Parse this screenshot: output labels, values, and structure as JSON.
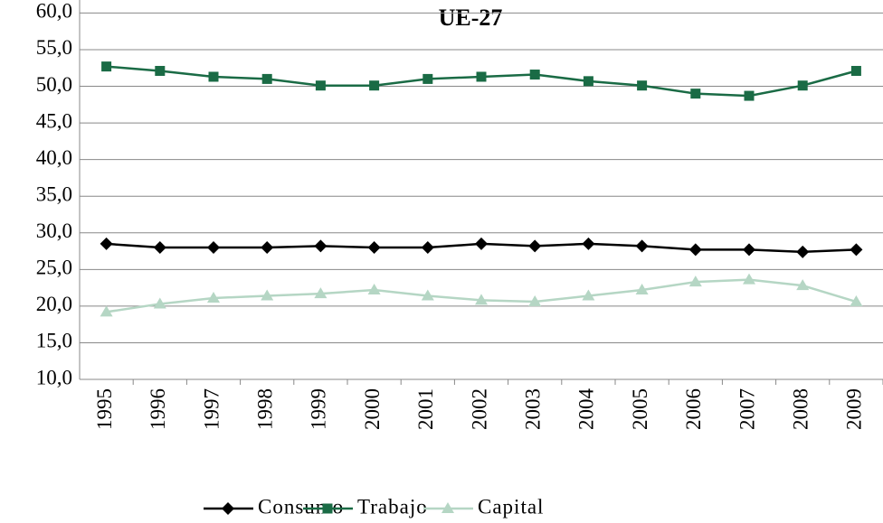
{
  "chart_data": {
    "type": "line",
    "title": "UE-27",
    "categories": [
      "1995",
      "1996",
      "1997",
      "1998",
      "1999",
      "2000",
      "2001",
      "2002",
      "2003",
      "2004",
      "2005",
      "2006",
      "2007",
      "2008",
      "2009"
    ],
    "series": [
      {
        "name": "Consumo",
        "color": "#000000",
        "marker": "diamond",
        "values": [
          28.5,
          28.0,
          28.0,
          28.0,
          28.2,
          28.0,
          28.0,
          28.5,
          28.2,
          28.5,
          28.2,
          27.7,
          27.7,
          27.4,
          27.7
        ]
      },
      {
        "name": "Trabajo",
        "color": "#1a6b45",
        "marker": "square",
        "values": [
          52.7,
          52.1,
          51.3,
          51.0,
          50.1,
          50.1,
          51.0,
          51.3,
          51.6,
          50.7,
          50.1,
          49.0,
          48.7,
          50.1,
          52.1
        ]
      },
      {
        "name": "Capital",
        "color": "#b5d6c4",
        "marker": "triangle",
        "values": [
          19.2,
          20.3,
          21.1,
          21.4,
          21.7,
          22.2,
          21.4,
          20.8,
          20.6,
          21.4,
          22.2,
          23.3,
          23.6,
          22.8,
          20.6
        ]
      }
    ],
    "ylim": [
      10,
      60
    ],
    "yticks": [
      {
        "value": 10,
        "label": "10,0"
      },
      {
        "value": 15,
        "label": "15,0"
      },
      {
        "value": 20,
        "label": "20,0"
      },
      {
        "value": 25,
        "label": "25,0"
      },
      {
        "value": 30,
        "label": "30,0"
      },
      {
        "value": 35,
        "label": "35,0"
      },
      {
        "value": 40,
        "label": "40,0"
      },
      {
        "value": 45,
        "label": "45,0"
      },
      {
        "value": 50,
        "label": "50,0"
      },
      {
        "value": 55,
        "label": "55,0"
      },
      {
        "value": 60,
        "label": "60,0"
      }
    ],
    "grid": true,
    "legend": "bottom"
  }
}
